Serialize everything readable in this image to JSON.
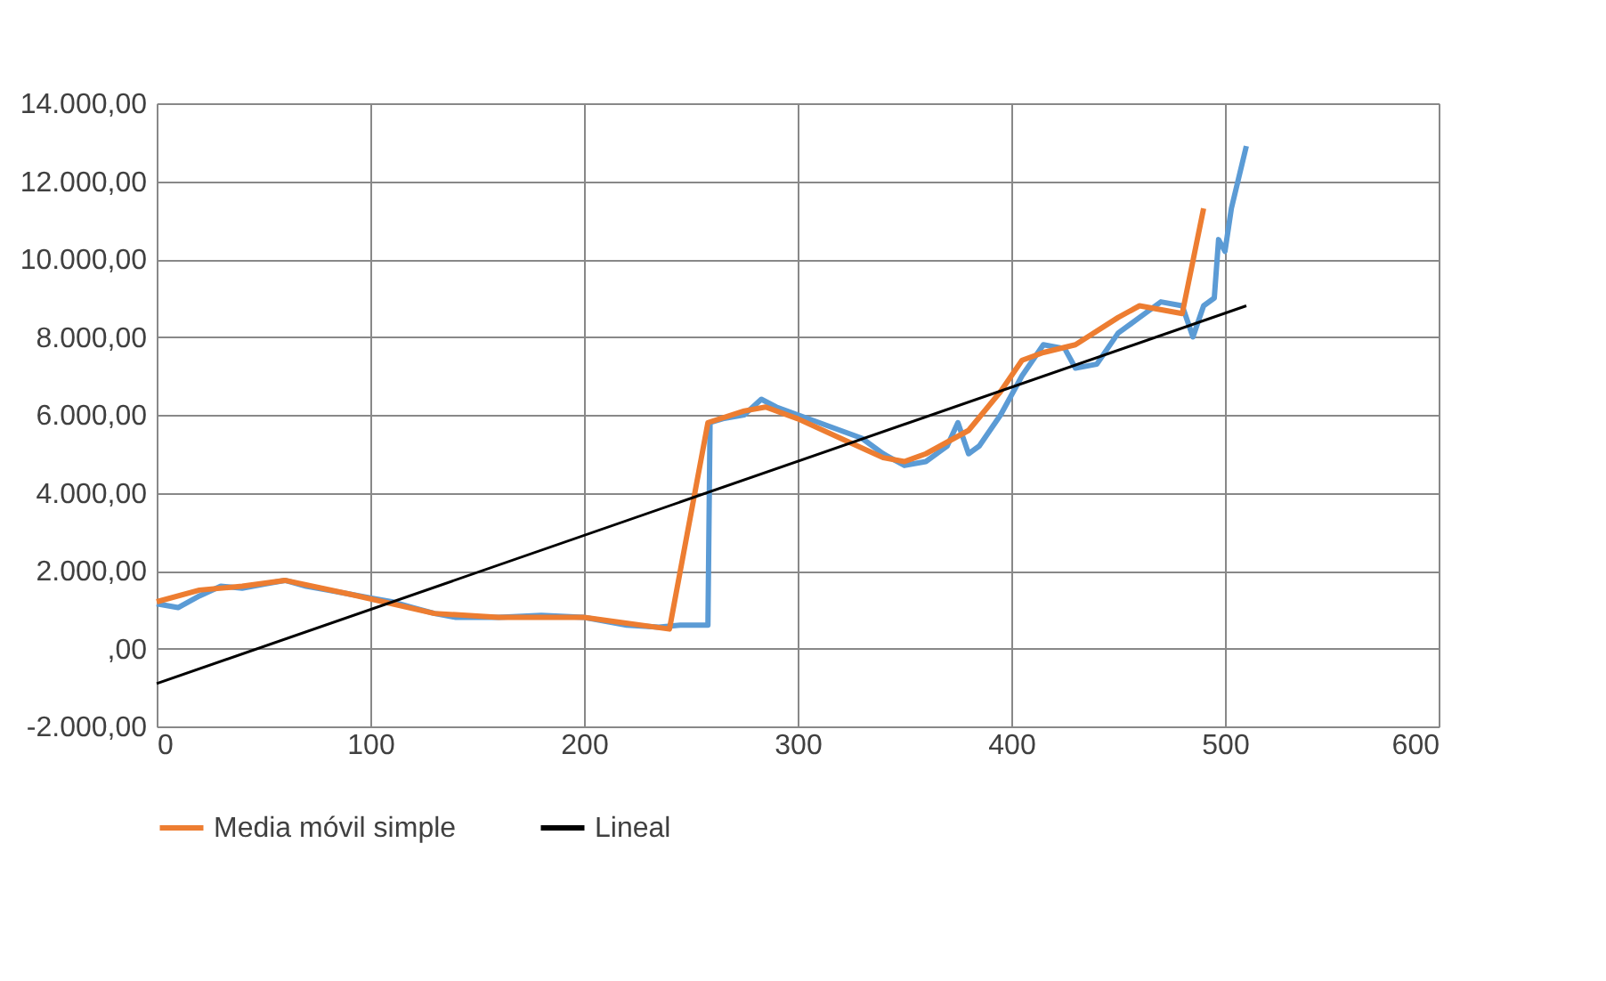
{
  "chart_data": {
    "type": "line",
    "xlim": [
      0,
      600
    ],
    "xticks": [
      0,
      100,
      200,
      300,
      400,
      500,
      600
    ],
    "ylim": [
      -2000,
      14000
    ],
    "yticks": [
      {
        "value": -2000,
        "label": "-2.000,00"
      },
      {
        "value": 0,
        "label": ",00"
      },
      {
        "value": 2000,
        "label": "2.000,00"
      },
      {
        "value": 4000,
        "label": "4.000,00"
      },
      {
        "value": 6000,
        "label": "6.000,00"
      },
      {
        "value": 8000,
        "label": "8.000,00"
      },
      {
        "value": 10000,
        "label": "10.000,00"
      },
      {
        "value": 12000,
        "label": "12.000,00"
      },
      {
        "value": 14000,
        "label": "14.000,00"
      }
    ],
    "grid": true,
    "legend": "bottom",
    "series": [
      {
        "color": "#5b9bd5",
        "x": [
          0,
          10,
          20,
          30,
          40,
          50,
          60,
          70,
          80,
          90,
          100,
          110,
          120,
          130,
          140,
          160,
          180,
          200,
          220,
          235,
          245,
          258,
          259,
          265,
          275,
          283,
          290,
          300,
          310,
          320,
          330,
          340,
          350,
          360,
          370,
          375,
          380,
          385,
          395,
          405,
          415,
          425,
          430,
          440,
          450,
          460,
          470,
          480,
          485,
          490,
          495,
          497,
          500,
          503,
          510
        ],
        "values": [
          1150,
          1050,
          1350,
          1600,
          1550,
          1650,
          1750,
          1600,
          1500,
          1400,
          1300,
          1200,
          1050,
          900,
          800,
          800,
          850,
          800,
          600,
          550,
          600,
          600,
          5800,
          5900,
          6000,
          6400,
          6200,
          6000,
          5800,
          5600,
          5400,
          5000,
          4700,
          4800,
          5200,
          5800,
          5000,
          5200,
          6000,
          7000,
          7800,
          7700,
          7200,
          7300,
          8100,
          8500,
          8900,
          8800,
          8000,
          8800,
          9000,
          10500,
          10200,
          11300,
          12900
        ]
      },
      {
        "name": "Media móvil simple",
        "color": "#ed7d31",
        "x": [
          0,
          20,
          40,
          60,
          90,
          130,
          160,
          200,
          240,
          258,
          275,
          285,
          300,
          320,
          340,
          350,
          360,
          380,
          395,
          405,
          415,
          430,
          450,
          460,
          480,
          490
        ],
        "values": [
          1200,
          1500,
          1600,
          1750,
          1400,
          900,
          800,
          800,
          500,
          5800,
          6100,
          6200,
          5900,
          5400,
          4900,
          4800,
          5000,
          5600,
          6600,
          7400,
          7600,
          7800,
          8500,
          8800,
          8600,
          11300
        ]
      },
      {
        "name": "Lineal",
        "color": "#000000",
        "x": [
          0,
          510
        ],
        "values": [
          -900,
          8800
        ]
      }
    ]
  }
}
